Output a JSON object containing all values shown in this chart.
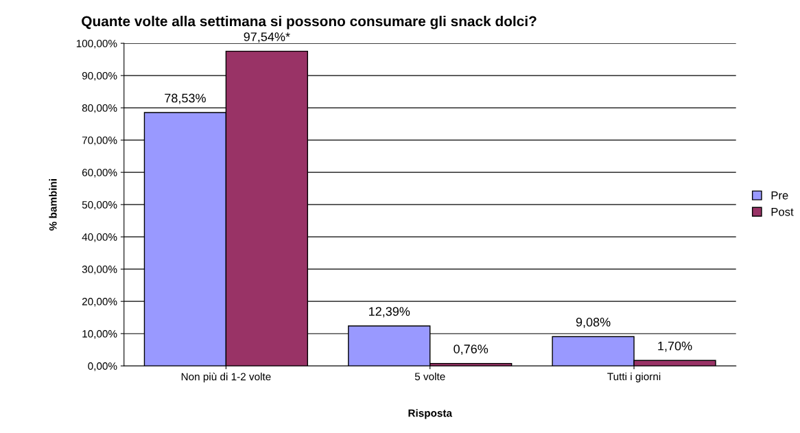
{
  "chart_data": {
    "type": "bar",
    "title": "Quante volte alla settimana si possono consumare gli snack dolci?",
    "xlabel": "Risposta",
    "ylabel": "% bambini",
    "categories": [
      "Non più di 1-2 volte",
      "5 volte",
      "Tutti i giorni"
    ],
    "series": [
      {
        "name": "Pre",
        "color": "#9999ff",
        "values": [
          78.53,
          12.39,
          9.08
        ],
        "value_labels": [
          "78,53%",
          "12,39%",
          "9,08%"
        ]
      },
      {
        "name": "Post",
        "color": "#993366",
        "values": [
          97.54,
          0.76,
          1.7
        ],
        "value_labels": [
          "97,54%*",
          "0,76%",
          "1,70%"
        ]
      }
    ],
    "ylim": [
      0,
      100
    ],
    "yticks": [
      {
        "value": 0,
        "label": "0,00%"
      },
      {
        "value": 10,
        "label": "10,00%"
      },
      {
        "value": 20,
        "label": "20,00%"
      },
      {
        "value": 30,
        "label": "30,00%"
      },
      {
        "value": 40,
        "label": "40,00%"
      },
      {
        "value": 50,
        "label": "50,00%"
      },
      {
        "value": 60,
        "label": "60,00%"
      },
      {
        "value": 70,
        "label": "70,00%"
      },
      {
        "value": 80,
        "label": "80,00%"
      },
      {
        "value": 90,
        "label": "90,00%"
      },
      {
        "value": 100,
        "label": "100,00%"
      }
    ],
    "grid": "y",
    "legend": "right"
  }
}
